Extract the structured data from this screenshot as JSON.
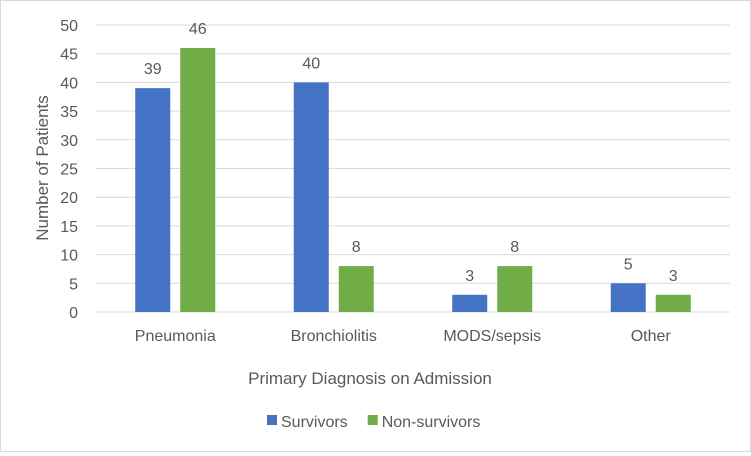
{
  "chart_data": {
    "type": "bar",
    "categories": [
      "Pneumonia",
      "Bronchiolitis",
      "MODS/sepsis",
      "Other"
    ],
    "series": [
      {
        "name": "Survivors",
        "values": [
          39,
          40,
          3,
          5
        ],
        "color": "#4472c4"
      },
      {
        "name": "Non-survivors",
        "values": [
          46,
          8,
          8,
          3
        ],
        "color": "#70ad47"
      }
    ],
    "xlabel": "Primary Diagnosis on Admission",
    "ylabel": "Number of Patients",
    "ylim": [
      0,
      50
    ],
    "yticks": [
      0,
      5,
      10,
      15,
      20,
      25,
      30,
      35,
      40,
      45,
      50
    ],
    "grid": true,
    "legend": "bottom",
    "data_labels": true,
    "colors": {
      "gridline": "#d9d9d9",
      "axis": "#d9d9d9",
      "text": "#595959"
    }
  }
}
